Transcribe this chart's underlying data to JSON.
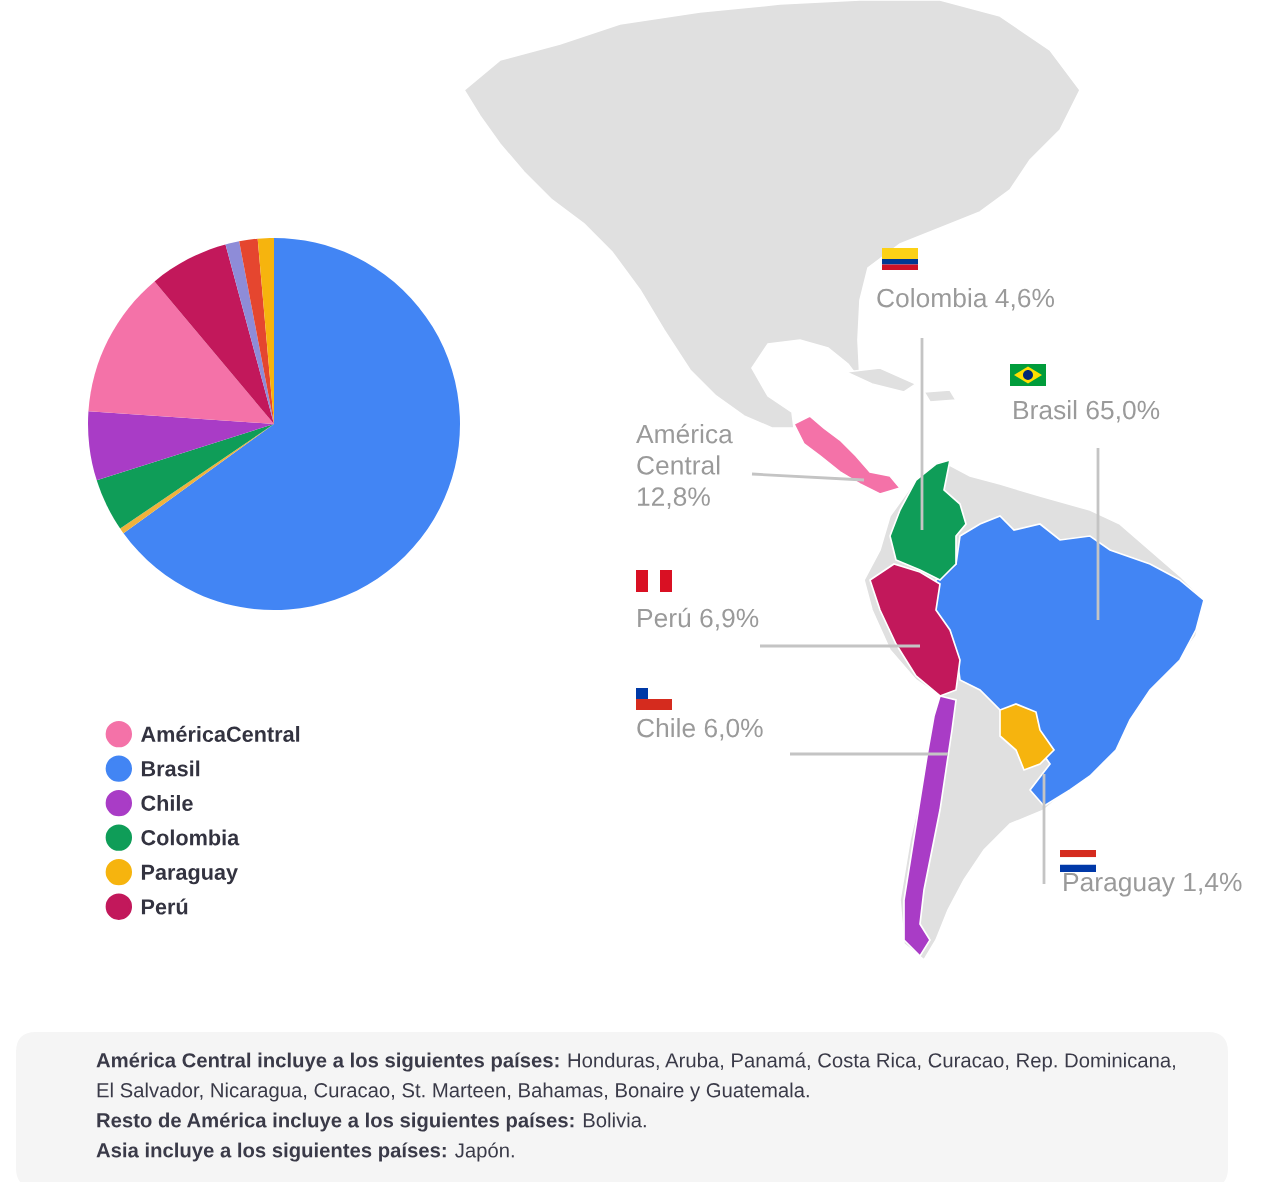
{
  "chart_data": {
    "type": "pie",
    "categories": [
      "Brasil",
      null,
      "Colombia",
      "Chile",
      "AméricaCentral",
      "Perú",
      null,
      null,
      "Paraguay"
    ],
    "values": [
      65.0,
      0.5,
      4.6,
      6.0,
      12.8,
      6.9,
      1.2,
      1.6,
      1.4
    ],
    "colors": [
      "#4285f4",
      "#f0b23c",
      "#0f9d58",
      "#a93cc6",
      "#f472a8",
      "#c2185b",
      "#8e8cd8",
      "#e5462f",
      "#f6b40e"
    ],
    "legend": "bottom",
    "annotations": [
      "Colombia 4,6%",
      "Brasil 65,0%",
      "América\nCentral\n12,8%",
      "Perú 6,9%",
      "Chile 6,0%",
      "Paraguay 1,4%",
      "América Central incluye a los siguientes países:",
      "Honduras, Aruba, Panamá, Costa Rica, Curacao, Rep. Dominicana, El Salvador, Nicaragua, Curacao, St. Marteen, Bahamas, Bonaire y Guatemala.",
      "Resto de América incluye a los siguientes países:",
      "Bolivia.",
      "Asia incluye a los siguientes países:",
      "Japón."
    ]
  }
}
